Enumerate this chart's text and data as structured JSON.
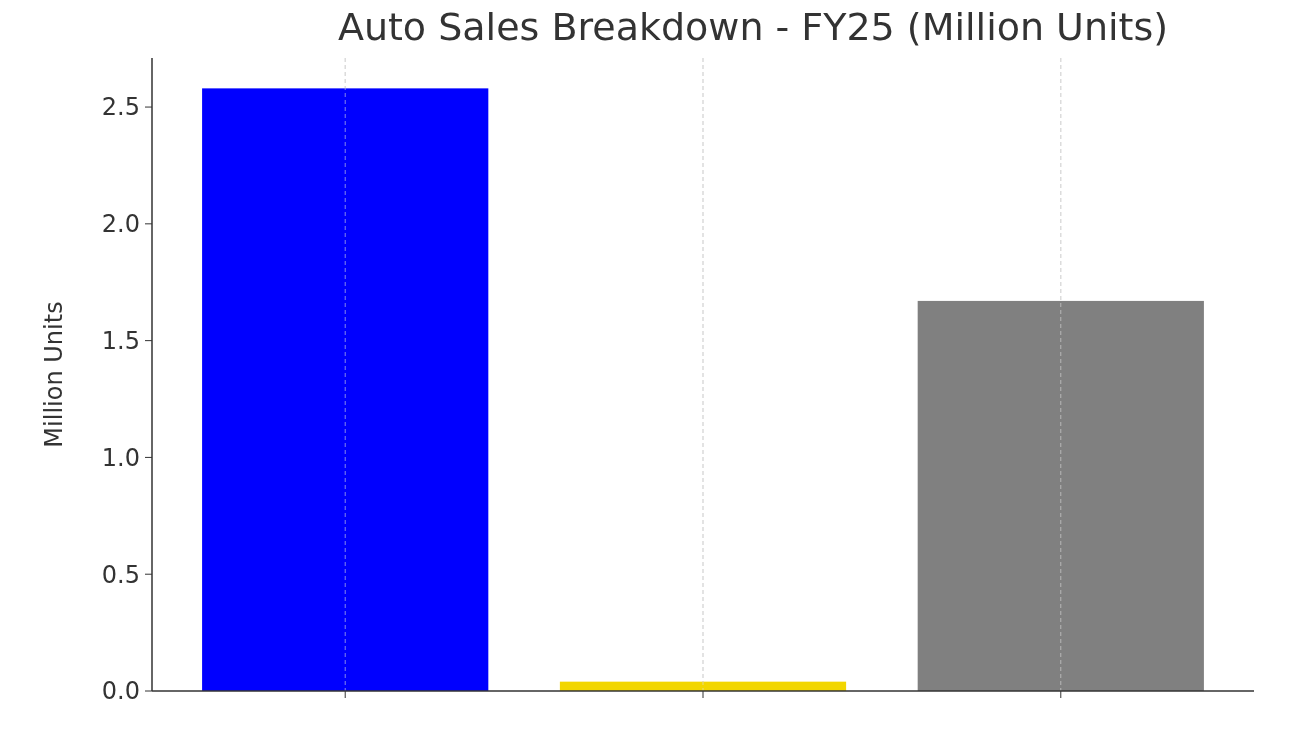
{
  "chart_data": {
    "type": "bar",
    "title": "Auto Sales Breakdown - FY25 (Million Units)",
    "ylabel": "Million Units",
    "categories": [
      null,
      null,
      null
    ],
    "values": [
      2.58,
      0.04,
      1.67
    ],
    "colors": [
      "#0000ff",
      "#f2d600",
      "#808080"
    ],
    "ylim": [
      0,
      2.71
    ],
    "yticks": [
      {
        "value": 0,
        "label": "0.0"
      },
      {
        "value": 0.5,
        "label": "0.5"
      },
      {
        "value": 1,
        "label": "1.0"
      },
      {
        "value": 1.5,
        "label": "1.5"
      },
      {
        "value": 2,
        "label": "2.0"
      },
      {
        "value": 2.5,
        "label": "2.5"
      }
    ],
    "grid": "x"
  }
}
